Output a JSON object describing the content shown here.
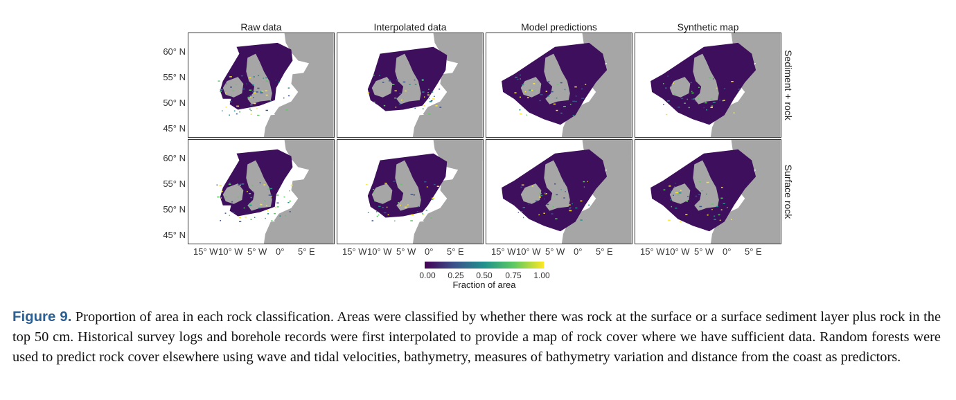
{
  "figure": {
    "columns": [
      "Raw data",
      "Interpolated data",
      "Model predictions",
      "Synthetic map"
    ],
    "rows": [
      "Sediment + rock",
      "Surface rock"
    ],
    "y_ticks": [
      "60° N",
      "55° N",
      "50° N",
      "45° N"
    ],
    "x_ticks": [
      "15° W",
      "10° W",
      "5° W",
      "0°",
      "5° E"
    ],
    "legend": {
      "title": "Fraction of area",
      "ticks": [
        "0.00",
        "0.25",
        "0.50",
        "0.75",
        "1.00"
      ],
      "colors": [
        "#440154",
        "#3b528b",
        "#21918c",
        "#5ec962",
        "#fde725"
      ]
    },
    "land_color": "#a6a6a6",
    "sea_color": "#3e0f5c"
  },
  "caption": {
    "label": "Figure 9.",
    "text": "Proportion of area in each rock classification. Areas were classified by whether there was rock at the surface or a surface sediment layer plus rock in the top 50 cm. Historical survey logs and borehole records were first interpolated to provide a map of rock cover where we have sufficient data. Random forests were used to predict rock cover elsewhere using wave and tidal velocities, bathymetry, measures of bathymetry variation and distance from the coast as predictors."
  }
}
